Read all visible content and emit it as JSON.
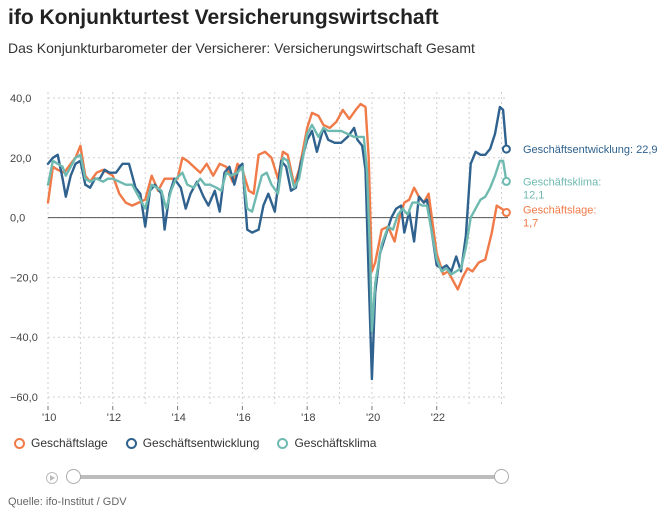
{
  "header": {
    "title": "ifo Konjunkturtest Versicherungswirtschaft",
    "subtitle": "Das Konjunkturbarometer der Versicherer: Versicherungswirtschaft Gesamt"
  },
  "colors": {
    "lage": "#f07a48",
    "entwicklung": "#2f628e",
    "klima": "#6fbab0",
    "grid": "#cfcfcf",
    "axis": "#666666"
  },
  "chart_data": {
    "type": "line",
    "x_start_year": 2010,
    "x_end": "2024-03",
    "xticks": [
      "'10",
      "'12",
      "'14",
      "'16",
      "'18",
      "'20",
      "'22"
    ],
    "xtick_years": [
      2010,
      2012,
      2014,
      2016,
      2018,
      2020,
      2022
    ],
    "ylim": [
      -63,
      42
    ],
    "yticks": [
      40,
      20,
      0,
      -20,
      -40,
      -60
    ],
    "ytick_labels": [
      "40,0",
      "20,0",
      "0,0",
      "−20,0",
      "−40,0",
      "−60,0"
    ],
    "grid": true,
    "series": [
      {
        "name": "Geschäftslage",
        "key": "lage",
        "end_label": [
          "Geschäftslage:",
          "1,7"
        ],
        "points": [
          [
            2010.0,
            5
          ],
          [
            2010.15,
            17
          ],
          [
            2010.3,
            16
          ],
          [
            2010.5,
            15
          ],
          [
            2010.7,
            18
          ],
          [
            2010.85,
            20
          ],
          [
            2011.0,
            24
          ],
          [
            2011.15,
            14
          ],
          [
            2011.3,
            12
          ],
          [
            2011.5,
            15
          ],
          [
            2011.7,
            16
          ],
          [
            2011.85,
            15
          ],
          [
            2012.0,
            14
          ],
          [
            2012.2,
            8
          ],
          [
            2012.4,
            5
          ],
          [
            2012.6,
            4
          ],
          [
            2012.8,
            5
          ],
          [
            2013.0,
            6
          ],
          [
            2013.2,
            14
          ],
          [
            2013.4,
            9
          ],
          [
            2013.6,
            13
          ],
          [
            2013.8,
            13
          ],
          [
            2014.0,
            13
          ],
          [
            2014.15,
            20
          ],
          [
            2014.3,
            19
          ],
          [
            2014.5,
            17
          ],
          [
            2014.7,
            15
          ],
          [
            2014.9,
            18
          ],
          [
            2015.1,
            14
          ],
          [
            2015.3,
            18
          ],
          [
            2015.5,
            17
          ],
          [
            2015.7,
            12
          ],
          [
            2015.85,
            18
          ],
          [
            2016.0,
            16
          ],
          [
            2016.2,
            9
          ],
          [
            2016.35,
            8
          ],
          [
            2016.5,
            21
          ],
          [
            2016.7,
            22
          ],
          [
            2016.9,
            20
          ],
          [
            2017.1,
            13
          ],
          [
            2017.25,
            22
          ],
          [
            2017.4,
            21
          ],
          [
            2017.6,
            11
          ],
          [
            2017.75,
            16
          ],
          [
            2018.0,
            30
          ],
          [
            2018.15,
            35
          ],
          [
            2018.35,
            34
          ],
          [
            2018.5,
            31
          ],
          [
            2018.7,
            30
          ],
          [
            2018.9,
            32
          ],
          [
            2019.1,
            36
          ],
          [
            2019.3,
            33
          ],
          [
            2019.5,
            36
          ],
          [
            2019.65,
            38
          ],
          [
            2019.8,
            37
          ],
          [
            2019.9,
            20
          ],
          [
            2020.0,
            -18
          ],
          [
            2020.1,
            -15
          ],
          [
            2020.3,
            -4
          ],
          [
            2020.5,
            -3
          ],
          [
            2020.7,
            -8
          ],
          [
            2020.85,
            0
          ],
          [
            2021.0,
            5
          ],
          [
            2021.15,
            6
          ],
          [
            2021.3,
            10
          ],
          [
            2021.45,
            7
          ],
          [
            2021.6,
            5
          ],
          [
            2021.75,
            8
          ],
          [
            2022.0,
            -12
          ],
          [
            2022.2,
            -19
          ],
          [
            2022.35,
            -18
          ],
          [
            2022.5,
            -21
          ],
          [
            2022.65,
            -24
          ],
          [
            2022.8,
            -20
          ],
          [
            2022.95,
            -17
          ],
          [
            2023.1,
            -18
          ],
          [
            2023.3,
            -15
          ],
          [
            2023.5,
            -14
          ],
          [
            2023.7,
            -5
          ],
          [
            2023.85,
            4
          ],
          [
            2024.0,
            3
          ],
          [
            2024.15,
            1.7
          ]
        ]
      },
      {
        "name": "Geschäftsentwicklung",
        "key": "entwicklung",
        "end_label": [
          "Geschäftsentwicklung: 22,9"
        ],
        "points": [
          [
            2010.0,
            18
          ],
          [
            2010.15,
            20
          ],
          [
            2010.3,
            21
          ],
          [
            2010.45,
            13
          ],
          [
            2010.55,
            7
          ],
          [
            2010.7,
            14
          ],
          [
            2010.85,
            18
          ],
          [
            2011.0,
            19
          ],
          [
            2011.15,
            11
          ],
          [
            2011.3,
            10
          ],
          [
            2011.45,
            13
          ],
          [
            2011.6,
            13
          ],
          [
            2011.75,
            16
          ],
          [
            2011.9,
            15
          ],
          [
            2012.1,
            15
          ],
          [
            2012.3,
            18
          ],
          [
            2012.5,
            18
          ],
          [
            2012.7,
            10
          ],
          [
            2012.85,
            8
          ],
          [
            2013.0,
            -3
          ],
          [
            2013.15,
            9
          ],
          [
            2013.3,
            11
          ],
          [
            2013.5,
            8
          ],
          [
            2013.6,
            -4
          ],
          [
            2013.75,
            8
          ],
          [
            2013.9,
            13
          ],
          [
            2014.1,
            10
          ],
          [
            2014.25,
            3
          ],
          [
            2014.4,
            8
          ],
          [
            2014.6,
            12
          ],
          [
            2014.8,
            7
          ],
          [
            2014.95,
            4
          ],
          [
            2015.15,
            9
          ],
          [
            2015.3,
            2
          ],
          [
            2015.45,
            15
          ],
          [
            2015.6,
            17
          ],
          [
            2015.75,
            11
          ],
          [
            2015.9,
            17
          ],
          [
            2016.0,
            18
          ],
          [
            2016.15,
            -4
          ],
          [
            2016.3,
            -5
          ],
          [
            2016.5,
            -4
          ],
          [
            2016.65,
            4
          ],
          [
            2016.8,
            8
          ],
          [
            2017.0,
            2
          ],
          [
            2017.2,
            19
          ],
          [
            2017.35,
            17
          ],
          [
            2017.5,
            9
          ],
          [
            2017.65,
            10
          ],
          [
            2017.8,
            18
          ],
          [
            2018.0,
            26
          ],
          [
            2018.15,
            29
          ],
          [
            2018.3,
            22
          ],
          [
            2018.5,
            30
          ],
          [
            2018.65,
            26
          ],
          [
            2018.85,
            25
          ],
          [
            2019.05,
            25
          ],
          [
            2019.25,
            27
          ],
          [
            2019.45,
            30
          ],
          [
            2019.55,
            26
          ],
          [
            2019.7,
            24
          ],
          [
            2019.8,
            16
          ],
          [
            2019.9,
            -20
          ],
          [
            2020.0,
            -54
          ],
          [
            2020.1,
            -25
          ],
          [
            2020.25,
            -12
          ],
          [
            2020.45,
            -5
          ],
          [
            2020.6,
            0
          ],
          [
            2020.75,
            3
          ],
          [
            2020.9,
            4
          ],
          [
            2021.0,
            -5
          ],
          [
            2021.15,
            2
          ],
          [
            2021.3,
            -8
          ],
          [
            2021.45,
            7
          ],
          [
            2021.6,
            5
          ],
          [
            2021.7,
            6
          ],
          [
            2022.0,
            -16
          ],
          [
            2022.15,
            -17
          ],
          [
            2022.3,
            -16
          ],
          [
            2022.45,
            -18
          ],
          [
            2022.6,
            -13
          ],
          [
            2022.75,
            -18
          ],
          [
            2022.9,
            -6
          ],
          [
            2023.05,
            18
          ],
          [
            2023.2,
            22
          ],
          [
            2023.35,
            21
          ],
          [
            2023.5,
            21
          ],
          [
            2023.65,
            23
          ],
          [
            2023.8,
            28
          ],
          [
            2023.95,
            37
          ],
          [
            2024.05,
            36
          ],
          [
            2024.15,
            22.9
          ]
        ]
      },
      {
        "name": "Geschäftsklima",
        "key": "klima",
        "end_label": [
          "Geschäftsklima:",
          "12,1"
        ],
        "points": [
          [
            2010.0,
            11
          ],
          [
            2010.15,
            19
          ],
          [
            2010.3,
            18
          ],
          [
            2010.45,
            17
          ],
          [
            2010.55,
            14
          ],
          [
            2010.7,
            17
          ],
          [
            2010.85,
            20
          ],
          [
            2011.0,
            21
          ],
          [
            2011.15,
            13
          ],
          [
            2011.3,
            12
          ],
          [
            2011.5,
            13
          ],
          [
            2011.7,
            12
          ],
          [
            2011.85,
            13
          ],
          [
            2012.0,
            13
          ],
          [
            2012.2,
            12
          ],
          [
            2012.4,
            11
          ],
          [
            2012.6,
            11
          ],
          [
            2012.8,
            7
          ],
          [
            2013.0,
            3
          ],
          [
            2013.2,
            11
          ],
          [
            2013.35,
            10
          ],
          [
            2013.5,
            9
          ],
          [
            2013.65,
            3
          ],
          [
            2013.8,
            9
          ],
          [
            2013.95,
            13
          ],
          [
            2014.15,
            15
          ],
          [
            2014.3,
            11
          ],
          [
            2014.5,
            10
          ],
          [
            2014.7,
            13
          ],
          [
            2014.85,
            11
          ],
          [
            2015.0,
            11
          ],
          [
            2015.2,
            10
          ],
          [
            2015.35,
            9
          ],
          [
            2015.5,
            15
          ],
          [
            2015.65,
            14
          ],
          [
            2015.85,
            15
          ],
          [
            2016.0,
            17
          ],
          [
            2016.15,
            3
          ],
          [
            2016.3,
            2
          ],
          [
            2016.45,
            8
          ],
          [
            2016.6,
            14
          ],
          [
            2016.75,
            15
          ],
          [
            2016.9,
            11
          ],
          [
            2017.1,
            8
          ],
          [
            2017.25,
            20
          ],
          [
            2017.4,
            19
          ],
          [
            2017.6,
            10
          ],
          [
            2017.75,
            13
          ],
          [
            2018.0,
            28
          ],
          [
            2018.15,
            31
          ],
          [
            2018.35,
            27
          ],
          [
            2018.5,
            30
          ],
          [
            2018.65,
            29
          ],
          [
            2018.85,
            29
          ],
          [
            2019.05,
            29
          ],
          [
            2019.25,
            28
          ],
          [
            2019.45,
            27
          ],
          [
            2019.6,
            27
          ],
          [
            2019.75,
            27
          ],
          [
            2019.85,
            15
          ],
          [
            2019.95,
            -15
          ],
          [
            2020.0,
            -38
          ],
          [
            2020.1,
            -22
          ],
          [
            2020.3,
            -9
          ],
          [
            2020.5,
            -3
          ],
          [
            2020.65,
            -4
          ],
          [
            2020.8,
            1
          ],
          [
            2020.95,
            3
          ],
          [
            2021.1,
            1
          ],
          [
            2021.25,
            5
          ],
          [
            2021.4,
            5
          ],
          [
            2021.55,
            4
          ],
          [
            2021.7,
            4
          ],
          [
            2022.0,
            -14
          ],
          [
            2022.15,
            -18
          ],
          [
            2022.3,
            -17
          ],
          [
            2022.45,
            -19
          ],
          [
            2022.6,
            -18
          ],
          [
            2022.75,
            -17
          ],
          [
            2022.9,
            -10
          ],
          [
            2023.05,
            0
          ],
          [
            2023.2,
            3
          ],
          [
            2023.35,
            6
          ],
          [
            2023.5,
            7
          ],
          [
            2023.65,
            10
          ],
          [
            2023.8,
            14
          ],
          [
            2023.95,
            19
          ],
          [
            2024.05,
            19
          ],
          [
            2024.15,
            12.1
          ]
        ]
      }
    ]
  },
  "legend": [
    {
      "label": "Geschäftslage",
      "key": "lage"
    },
    {
      "label": "Geschäftsentwicklung",
      "key": "entwicklung"
    },
    {
      "label": "Geschäftsklima",
      "key": "klima"
    }
  ],
  "source": "Quelle: ifo-Institut / GDV"
}
